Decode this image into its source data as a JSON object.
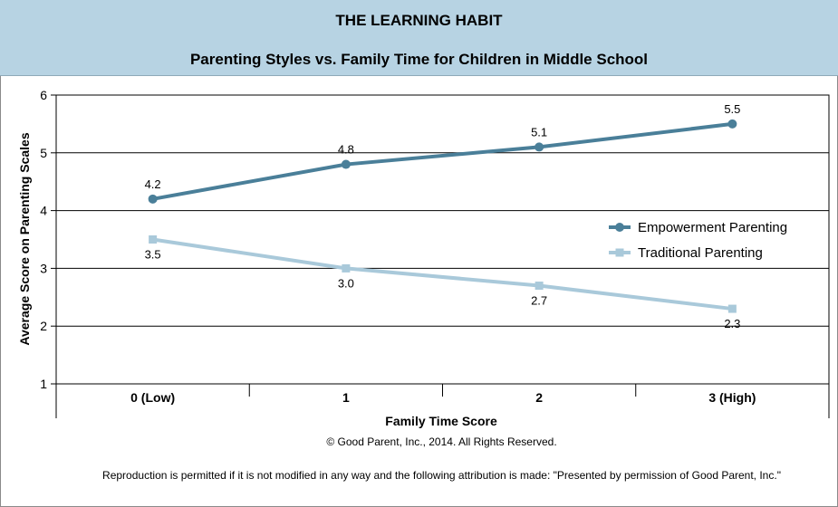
{
  "chart_data": {
    "type": "line",
    "title": "THE LEARNING HABIT",
    "subtitle": "Parenting Styles vs. Family Time for Children in Middle School",
    "xlabel": "Family Time Score",
    "ylabel": "Average Score on Parenting Scales",
    "categories": [
      "0 (Low)",
      "1",
      "2",
      "3 (High)"
    ],
    "ylim": [
      1,
      6
    ],
    "yticks": [
      "1",
      "2",
      "3",
      "4",
      "5",
      "6"
    ],
    "grid": true,
    "legend_position": "right",
    "series": [
      {
        "name": "Empowerment Parenting",
        "values": [
          4.2,
          4.8,
          5.1,
          5.5
        ],
        "labels": [
          "4.2",
          "4.8",
          "5.1",
          "5.5"
        ],
        "color": "#4a7f99",
        "marker": "circle"
      },
      {
        "name": "Traditional Parenting",
        "values": [
          3.5,
          3.0,
          2.7,
          2.3
        ],
        "labels": [
          "3.5",
          "3.0",
          "2.7",
          "2.3"
        ],
        "color": "#a9c9da",
        "marker": "square"
      }
    ]
  },
  "footer": {
    "copyright": "© Good Parent, Inc., 2014. All Rights Reserved.",
    "reproduction": "Reproduction is permitted if it is not modified in any way and the following attribution is made: \"Presented by permission of Good Parent, Inc.\""
  }
}
